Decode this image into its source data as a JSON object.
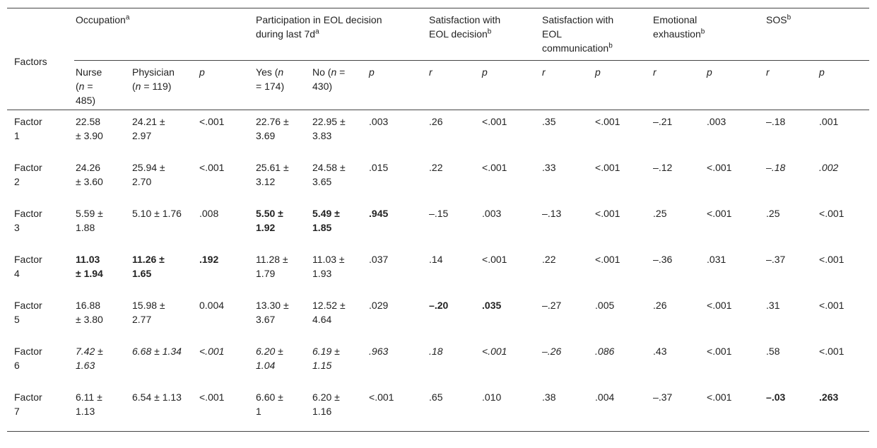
{
  "table": {
    "corner": "Factors",
    "groups": [
      {
        "text": [
          "Occupation",
          {
            "sup": "a"
          }
        ],
        "span": 3
      },
      {
        "text": [
          "Participation in EOL decision during last 7d",
          {
            "sup": "a"
          }
        ],
        "span": 3
      },
      {
        "text": [
          "Satisfaction with EOL decision",
          {
            "sup": "b"
          }
        ],
        "span": 2
      },
      {
        "text": [
          "Satisfaction with EOL communication",
          {
            "sup": "b"
          }
        ],
        "span": 2
      },
      {
        "text": [
          "Emotional exhaustion",
          {
            "sup": "b"
          }
        ],
        "span": 2
      },
      {
        "text": [
          "SOS",
          {
            "sup": "b"
          }
        ],
        "span": 2
      }
    ],
    "subheaders": [
      [
        "Nurse (",
        {
          "i": "n"
        },
        " = 485)"
      ],
      [
        "Physician (",
        {
          "i": "n"
        },
        " = 119)"
      ],
      [
        {
          "i": "p"
        }
      ],
      [
        "Yes (",
        {
          "i": "n"
        },
        " = 174)"
      ],
      [
        "No (",
        {
          "i": "n"
        },
        " = 430)"
      ],
      [
        {
          "i": "p"
        }
      ],
      [
        {
          "i": "r"
        }
      ],
      [
        {
          "i": "p"
        }
      ],
      [
        {
          "i": "r"
        }
      ],
      [
        {
          "i": "p"
        }
      ],
      [
        {
          "i": "r"
        }
      ],
      [
        {
          "i": "p"
        }
      ],
      [
        {
          "i": "r"
        }
      ],
      [
        {
          "i": "p"
        }
      ]
    ],
    "rows": [
      {
        "label": "Factor 1",
        "cells": [
          "22.58 ± 3.90",
          "24.21 ± 2.97",
          "<.001",
          "22.76 ± 3.69",
          "22.95 ± 3.83",
          ".003",
          ".26",
          "<.001",
          ".35",
          "<.001",
          "–.21",
          ".003",
          "–.18",
          ".001"
        ],
        "bold": [],
        "italic": []
      },
      {
        "label": "Factor 2",
        "cells": [
          "24.26 ± 3.60",
          "25.94 ± 2.70",
          "<.001",
          "25.61 ± 3.12",
          "24.58 ± 3.65",
          ".015",
          ".22",
          "<.001",
          ".33",
          "<.001",
          "–.12",
          "<.001",
          "–.18",
          ".002"
        ],
        "bold": [],
        "italic": [
          12,
          13
        ]
      },
      {
        "label": "Factor 3",
        "cells": [
          "5.59 ± 1.88",
          "5.10 ± 1.76",
          ".008",
          "5.50 ± 1.92",
          "5.49 ± 1.85",
          ".945",
          "–.15",
          ".003",
          "–.13",
          "<.001",
          ".25",
          "<.001",
          ".25",
          "<.001"
        ],
        "bold": [
          3,
          4,
          5
        ],
        "italic": []
      },
      {
        "label": "Factor 4",
        "cells": [
          "11.03 ± 1.94",
          "11.26 ± 1.65",
          ".192",
          "11.28 ± 1.79",
          "11.03 ± 1.93",
          ".037",
          ".14",
          "<.001",
          ".22",
          "<.001",
          "–.36",
          ".031",
          "–.37",
          "<.001"
        ],
        "bold": [
          0,
          1,
          2
        ],
        "italic": []
      },
      {
        "label": "Factor 5",
        "cells": [
          "16.88 ± 3.80",
          "15.98 ± 2.77",
          "0.004",
          "13.30 ± 3.67",
          "12.52 ± 4.64",
          ".029",
          "–.20",
          ".035",
          "–.27",
          ".005",
          ".26",
          "<.001",
          ".31",
          "<.001"
        ],
        "bold": [
          6,
          7
        ],
        "italic": []
      },
      {
        "label": "Factor 6",
        "cells": [
          "7.42 ± 1.63",
          "6.68 ± 1.34",
          "<.001",
          "6.20 ± 1.04",
          "6.19 ± 1.15",
          ".963",
          ".18",
          "<.001",
          "–.26",
          ".086",
          ".43",
          "<.001",
          ".58",
          "<.001"
        ],
        "bold": [],
        "italic": [
          0,
          1,
          2,
          3,
          4,
          5,
          6,
          7,
          8,
          9
        ]
      },
      {
        "label": "Factor 7",
        "cells": [
          "6.11 ± 1.13",
          "6.54 ± 1.13",
          "<.001",
          "6.60 ± 1",
          "6.20 ± 1.16",
          "<.001",
          ".65",
          ".010",
          ".38",
          ".004",
          "–.37",
          "<.001",
          "–.03",
          ".263"
        ],
        "bold": [
          12,
          13
        ],
        "italic": []
      }
    ]
  }
}
